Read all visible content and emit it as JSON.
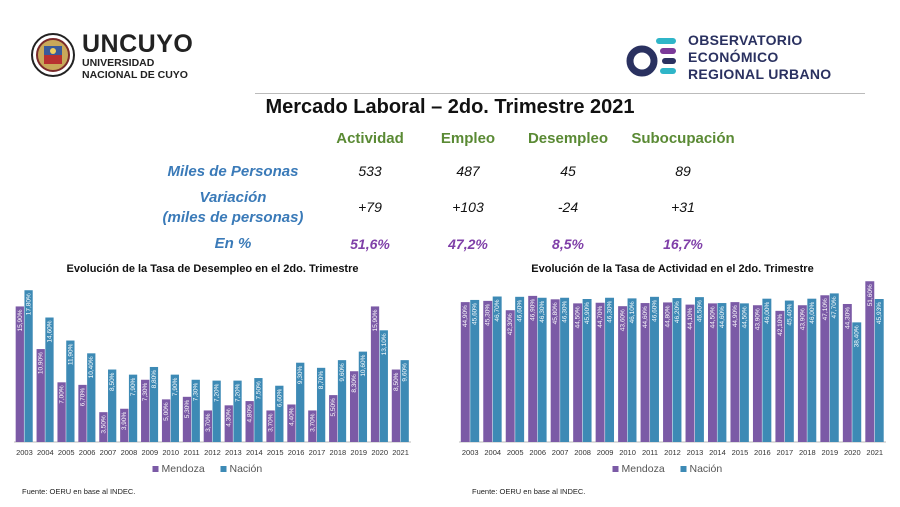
{
  "header": {
    "uncuyo_title": "UNCUYO",
    "uncuyo_line1": "UNIVERSIDAD",
    "uncuyo_line2": "NACIONAL DE CUYO",
    "oeru_line1": "OBSERVATORIO",
    "oeru_line2": "ECONÓMICO",
    "oeru_line3": "REGIONAL URBANO"
  },
  "title": "Mercado Laboral – 2do. Trimestre 2021",
  "summary": {
    "columns": [
      "Actividad",
      "Empleo",
      "Desempleo",
      "Subocupación"
    ],
    "rows": [
      {
        "label": "Miles de Personas",
        "values": [
          "533",
          "487",
          "45",
          "89"
        ]
      },
      {
        "label": "Variación",
        "label2": "(miles de personas)",
        "values": [
          "+79",
          "+103",
          "-24",
          "+31"
        ]
      },
      {
        "label": "En %",
        "values": [
          "51,6%",
          "47,2%",
          "8,5%",
          "16,7%"
        ]
      }
    ]
  },
  "colors": {
    "mendoza": "#7b5aa6",
    "nacion": "#3d8ab5",
    "green": "#5a8a34",
    "blue_label": "#3a7ab8",
    "purple_text": "#7f3fa8"
  },
  "chart_data": [
    {
      "type": "bar",
      "title": "Evolución de la Tasa de Desempleo en el 2do. Trimestre",
      "categories": [
        "2003",
        "2004",
        "2005",
        "2006",
        "2007",
        "2008",
        "2009",
        "2010",
        "2011",
        "2012",
        "2013",
        "2014",
        "2015",
        "2016",
        "2017",
        "2018",
        "2019",
        "2020",
        "2021"
      ],
      "series": [
        {
          "name": "Mendoza",
          "values": [
            15.9,
            10.9,
            7.0,
            6.7,
            3.5,
            3.9,
            7.3,
            5.0,
            5.3,
            3.7,
            4.3,
            4.8,
            3.7,
            4.4,
            3.7,
            5.5,
            8.3,
            15.9,
            8.5
          ]
        },
        {
          "name": "Nación",
          "values": [
            17.8,
            14.6,
            11.9,
            10.4,
            8.5,
            7.9,
            8.8,
            7.9,
            7.3,
            7.2,
            7.2,
            7.5,
            6.6,
            9.3,
            8.7,
            9.6,
            10.6,
            13.1,
            9.6
          ]
        }
      ],
      "data_labels": {
        "Mendoza": [
          "15,90%",
          "10,90%",
          "7,00%",
          "6,70%",
          "3,50%",
          "3,90%",
          "7,30%",
          "5,00%",
          "5,30%",
          "3,70%",
          "4,30%",
          "4,80%",
          "3,70%",
          "4,40%",
          "3,70%",
          "5,50%",
          "8,30%",
          "15,90%",
          "8,50%"
        ],
        "Nación": [
          "17,80%",
          "14,60%",
          "11,90%",
          "10,40%",
          "8,50%",
          "7,90%",
          "8,80%",
          "7,90%",
          "7,30%",
          "7,20%",
          "7,20%",
          "7,50%",
          "6,60%",
          "9,30%",
          "8,70%",
          "9,60%",
          "10,60%",
          "13,10%",
          "9,60%"
        ]
      },
      "ylim": [
        0,
        19
      ],
      "legend": "bottom-center",
      "source": "Fuente: OERU en base al INDEC."
    },
    {
      "type": "bar",
      "title": "Evolución de la Tasa de Actividad en el 2do. Trimestre",
      "categories": [
        "2003",
        "2004",
        "2005",
        "2006",
        "2007",
        "2008",
        "2009",
        "2010",
        "2011",
        "2012",
        "2013",
        "2014",
        "2015",
        "2016",
        "2017",
        "2018",
        "2019",
        "2020",
        "2021"
      ],
      "series": [
        {
          "name": "Mendoza",
          "values": [
            44.9,
            45.3,
            42.3,
            46.9,
            45.8,
            44.5,
            44.7,
            43.6,
            44.6,
            44.8,
            44.1,
            44.5,
            44.9,
            43.9,
            42.1,
            43.9,
            47.1,
            44.3,
            51.6
          ]
        },
        {
          "name": "Nación",
          "values": [
            45.6,
            46.7,
            46.6,
            46.3,
            46.3,
            45.9,
            46.3,
            46.1,
            46.6,
            46.2,
            46.5,
            44.6,
            44.5,
            46.0,
            45.4,
            46.0,
            47.7,
            38.4,
            45.9
          ]
        }
      ],
      "data_labels": {
        "Mendoza": [
          "44,90%",
          "45,30%",
          "42,30%",
          "46,90%",
          "45,80%",
          "44,50%",
          "44,70%",
          "43,60%",
          "44,60%",
          "44,80%",
          "44,10%",
          "44,50%",
          "44,90%",
          "43,90%",
          "42,10%",
          "43,90%",
          "47,10%",
          "44,30%",
          "51,60%"
        ],
        "Nación": [
          "45,60%",
          "46,70%",
          "46,60%",
          "46,30%",
          "46,30%",
          "45,90%",
          "46,30%",
          "46,10%",
          "46,60%",
          "46,20%",
          "46,50%",
          "44,60%",
          "44,50%",
          "46,00%",
          "45,40%",
          "46,00%",
          "47,70%",
          "38,40%",
          "45,93%"
        ]
      },
      "ylim": [
        0,
        52
      ],
      "legend": "bottom-center",
      "source": "Fuente: OERU en base al INDEC."
    }
  ]
}
